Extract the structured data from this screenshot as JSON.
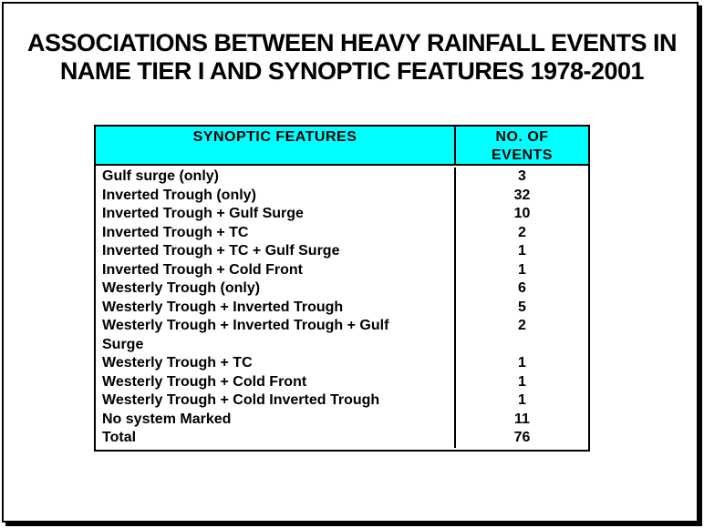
{
  "slide": {
    "background": "#ffffff",
    "frame_color": "#000000",
    "title_line1": "ASSOCIATIONS BETWEEN HEAVY RAINFALL EVENTS IN",
    "title_line2": "NAME TIER I AND SYNOPTIC FEATURES 1978-2001"
  },
  "table": {
    "header_bg": "#00ffff",
    "text_color": "#000000",
    "header": {
      "features_label": "SYNOPTIC FEATURES",
      "events_label_line1": "NO. OF",
      "events_label_line2": "EVENTS"
    },
    "lines": [
      {
        "feature": "Gulf surge (only)",
        "events": "3"
      },
      {
        "feature": "Inverted Trough (only)",
        "events": "32"
      },
      {
        "feature": "Inverted Trough + Gulf Surge",
        "events": "10"
      },
      {
        "feature": "Inverted Trough + TC",
        "events": "2"
      },
      {
        "feature": "Inverted Trough + TC + Gulf Surge",
        "events": "1"
      },
      {
        "feature": "Inverted Trough + Cold Front",
        "events": "1"
      },
      {
        "feature": "Westerly Trough (only)",
        "events": "6"
      },
      {
        "feature": "Westerly Trough + Inverted Trough",
        "events": "5"
      },
      {
        "feature": "Westerly Trough + Inverted Trough + Gulf",
        "events": "2"
      },
      {
        "feature": "Surge",
        "events": ""
      },
      {
        "feature": "Westerly Trough + TC",
        "events": "1"
      },
      {
        "feature": "Westerly Trough + Cold Front",
        "events": "1"
      },
      {
        "feature": "Westerly Trough + Cold Inverted Trough",
        "events": "1"
      },
      {
        "feature": "No system Marked",
        "events": "11"
      },
      {
        "feature": "Total",
        "events": "76"
      }
    ]
  }
}
